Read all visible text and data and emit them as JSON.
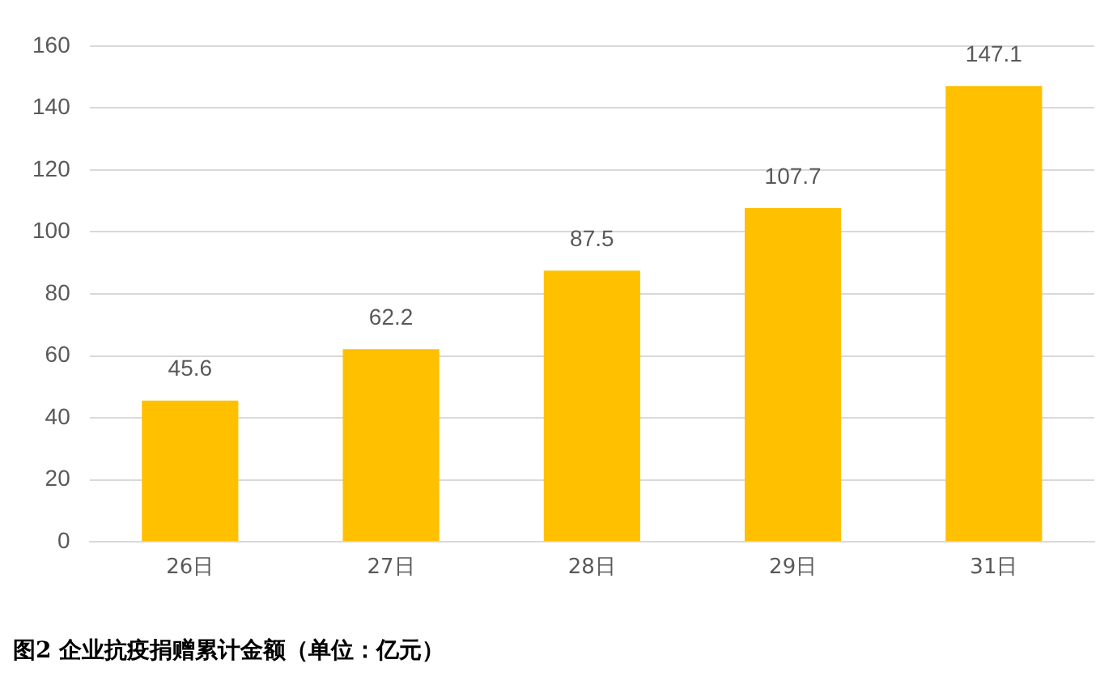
{
  "chart_data": {
    "type": "bar",
    "title": "图2 企业抗疫捐赠累计金额（单位：亿元）",
    "categories": [
      "26日",
      "27日",
      "28日",
      "29日",
      "31日"
    ],
    "values": [
      45.6,
      62.2,
      87.5,
      107.7,
      147.1
    ],
    "color": "#ffc000",
    "ylim": [
      0,
      160
    ],
    "yticks": [
      0,
      20,
      40,
      60,
      80,
      100,
      120,
      140,
      160
    ],
    "grid": "y",
    "legend": false,
    "data_labels": true
  }
}
